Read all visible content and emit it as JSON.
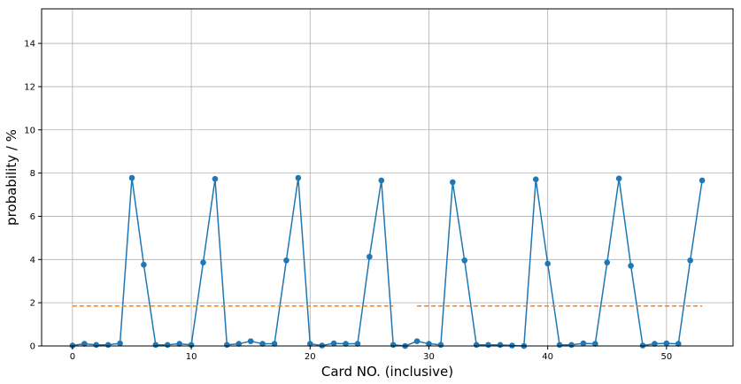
{
  "chart_data": {
    "type": "line",
    "xlabel": "Card NO. (inclusive)",
    "ylabel": "probability / %",
    "xlim": [
      -2.6,
      55.6
    ],
    "ylim": [
      0,
      15.6
    ],
    "grid": true,
    "x_ticks": [
      0,
      10,
      20,
      30,
      40,
      50
    ],
    "y_ticks": [
      0,
      2,
      4,
      6,
      8,
      10,
      12,
      14
    ],
    "x_tick_labels": [
      "0",
      "10",
      "20",
      "30",
      "40",
      "50"
    ],
    "y_tick_labels": [
      "0",
      "2",
      "4",
      "6",
      "8",
      "10",
      "12",
      "14"
    ],
    "series": [
      {
        "type": "line-marker",
        "color": "#1f77b4",
        "x": [
          0,
          1,
          2,
          3,
          4,
          5,
          6,
          7,
          8,
          9,
          10,
          11,
          12,
          13,
          14,
          15,
          16,
          17,
          18,
          19,
          20,
          21,
          22,
          23,
          24,
          25,
          26,
          27,
          28,
          29,
          30,
          31,
          32,
          33,
          34,
          35,
          36,
          37,
          38,
          39,
          40,
          41,
          42,
          43,
          44,
          45,
          46,
          47,
          48,
          49,
          50,
          51,
          52,
          53
        ],
        "y": [
          0.02,
          0.1,
          0.05,
          0.05,
          0.12,
          7.78,
          3.76,
          0.05,
          0.05,
          0.1,
          0.05,
          3.86,
          7.73,
          0.05,
          0.1,
          0.22,
          0.1,
          0.1,
          3.96,
          7.78,
          0.1,
          0.02,
          0.12,
          0.1,
          0.1,
          4.13,
          7.66,
          0.05,
          0.0,
          0.22,
          0.1,
          0.05,
          7.58,
          3.96,
          0.05,
          0.05,
          0.05,
          0.02,
          0.0,
          7.71,
          3.81,
          0.05,
          0.05,
          0.12,
          0.1,
          3.86,
          7.75,
          3.71,
          0.02,
          0.1,
          0.12,
          0.1,
          3.96,
          7.66
        ]
      },
      {
        "type": "dashed",
        "color": "#ff7f0e",
        "segments": [
          {
            "x": [
              0,
              27
            ],
            "y": [
              1.85,
              1.85
            ]
          },
          {
            "x": [
              29,
              53
            ],
            "y": [
              1.85,
              1.85
            ]
          }
        ]
      }
    ]
  }
}
